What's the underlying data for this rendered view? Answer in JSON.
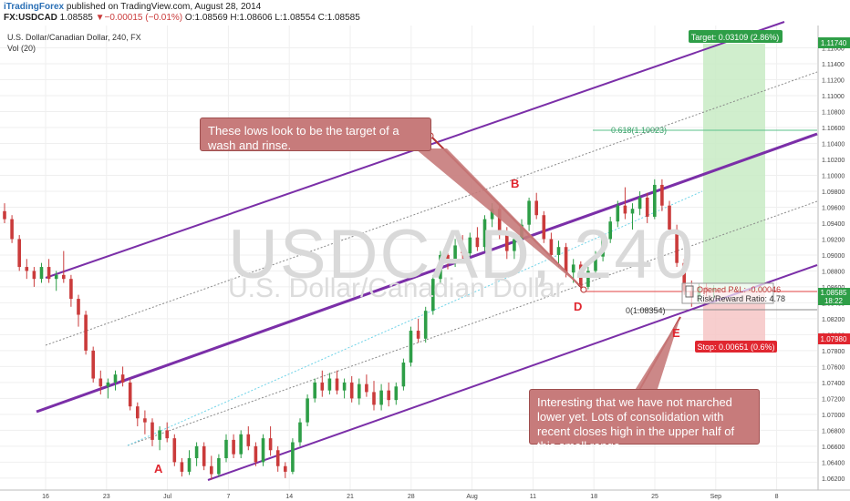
{
  "header": {
    "publisher": "iTradingForex",
    "published_text": "published on TradingView.com, August 28, 2014",
    "symbol": "FX:USDCAD",
    "last": "1.08585",
    "change": "▼−0.00015 (−0.01%)",
    "open_label": "O:",
    "open": "1.08569",
    "high_label": "H:",
    "high": "1.08606",
    "low_label": "L:",
    "low": "1.08554",
    "close_label": "C:",
    "close": "1.08585"
  },
  "instrument_line": "U.S. Dollar/Canadian Dollar, 240, FX",
  "volume_line": "Vol (20)",
  "watermark": {
    "symbol": "USDCAD, 240",
    "name": "U.S. Dollar/Canadian Dollar"
  },
  "annotations": {
    "callout1": "These lows look to be the target of a wash and rinse.",
    "callout2": "Interesting that we have not marched lower yet.  Lots of consolidation with recent closes high in the upper half of this small range.",
    "point_a": "A",
    "point_b": "B",
    "point_d": "D",
    "point_e": "E"
  },
  "position_tool": {
    "target": "Target: 0.03109 (2.86%)",
    "opened_pl": "Opened P&L: -0.00046",
    "risk_reward": "Risk/Reward Ratio: 4.78",
    "stop": "Stop: 0.00651 (0.6%)"
  },
  "fib": {
    "upper": "0.618(1.10023)",
    "lower": "0(1.08354)"
  },
  "price_tags": {
    "target_price": "1.11740",
    "last_price": "1.08585",
    "countdown": "18:22",
    "stop_price": "1.07980"
  },
  "colors": {
    "up": "#2e9e47",
    "down": "#ca3b3b",
    "channel": "#7b2fa8",
    "arrow": "#b33333",
    "target_zone": "#c8ebc4",
    "stop_zone": "#f6c5c5"
  },
  "chart_data": {
    "type": "candlestick",
    "x_ticks": [
      "16",
      "23",
      "Jul",
      "7",
      "14",
      "21",
      "28",
      "Aug",
      "11",
      "18",
      "25",
      "Sep",
      "8"
    ],
    "y_ticks": [
      1.062,
      1.064,
      1.066,
      1.068,
      1.07,
      1.072,
      1.074,
      1.076,
      1.078,
      1.08,
      1.082,
      1.084,
      1.086,
      1.088,
      1.09,
      1.092,
      1.094,
      1.096,
      1.098,
      1.1,
      1.102,
      1.104,
      1.106,
      1.108,
      1.11,
      1.112,
      1.114,
      1.116
    ],
    "ylim": [
      1.0605,
      1.1188
    ],
    "xlim": [
      0,
      218
    ],
    "grid": true,
    "series": [
      {
        "day": 0,
        "open": 1.0955,
        "high": 1.0965,
        "low": 1.094,
        "close": 1.0945
      },
      {
        "day": 2,
        "open": 1.0945,
        "high": 1.095,
        "low": 1.0915,
        "close": 1.092
      },
      {
        "day": 4,
        "open": 1.092,
        "high": 1.0925,
        "low": 1.088,
        "close": 1.0885
      },
      {
        "day": 6,
        "open": 1.0885,
        "high": 1.0895,
        "low": 1.087,
        "close": 1.088
      },
      {
        "day": 8,
        "open": 1.088,
        "high": 1.0885,
        "low": 1.086,
        "close": 1.087
      },
      {
        "day": 10,
        "open": 1.087,
        "high": 1.089,
        "low": 1.0865,
        "close": 1.0885
      },
      {
        "day": 12,
        "open": 1.0885,
        "high": 1.0895,
        "low": 1.0865,
        "close": 1.087
      },
      {
        "day": 14,
        "open": 1.087,
        "high": 1.088,
        "low": 1.0855,
        "close": 1.0875
      },
      {
        "day": 16,
        "open": 1.0875,
        "high": 1.0905,
        "low": 1.0865,
        "close": 1.087
      },
      {
        "day": 18,
        "open": 1.087,
        "high": 1.0875,
        "low": 1.0835,
        "close": 1.0845
      },
      {
        "day": 20,
        "open": 1.0845,
        "high": 1.085,
        "low": 1.081,
        "close": 1.0825
      },
      {
        "day": 22,
        "open": 1.0825,
        "high": 1.083,
        "low": 1.0775,
        "close": 1.078
      },
      {
        "day": 24,
        "open": 1.078,
        "high": 1.0785,
        "low": 1.074,
        "close": 1.0745
      },
      {
        "day": 26,
        "open": 1.0745,
        "high": 1.0755,
        "low": 1.0725,
        "close": 1.0735
      },
      {
        "day": 28,
        "open": 1.0735,
        "high": 1.0745,
        "low": 1.072,
        "close": 1.074
      },
      {
        "day": 30,
        "open": 1.074,
        "high": 1.0755,
        "low": 1.073,
        "close": 1.075
      },
      {
        "day": 32,
        "open": 1.075,
        "high": 1.076,
        "low": 1.0735,
        "close": 1.074
      },
      {
        "day": 34,
        "open": 1.074,
        "high": 1.0745,
        "low": 1.0705,
        "close": 1.071
      },
      {
        "day": 36,
        "open": 1.071,
        "high": 1.0715,
        "low": 1.0685,
        "close": 1.0695
      },
      {
        "day": 38,
        "open": 1.0695,
        "high": 1.0705,
        "low": 1.0675,
        "close": 1.069
      },
      {
        "day": 40,
        "open": 1.069,
        "high": 1.0695,
        "low": 1.066,
        "close": 1.0668
      },
      {
        "day": 42,
        "open": 1.0668,
        "high": 1.0685,
        "low": 1.0655,
        "close": 1.068
      },
      {
        "day": 44,
        "open": 1.068,
        "high": 1.069,
        "low": 1.0665,
        "close": 1.067
      },
      {
        "day": 46,
        "open": 1.067,
        "high": 1.0675,
        "low": 1.0635,
        "close": 1.064
      },
      {
        "day": 48,
        "open": 1.064,
        "high": 1.0645,
        "low": 1.0622,
        "close": 1.0628
      },
      {
        "day": 50,
        "open": 1.0628,
        "high": 1.0655,
        "low": 1.0624,
        "close": 1.0645
      },
      {
        "day": 52,
        "open": 1.0645,
        "high": 1.0665,
        "low": 1.0635,
        "close": 1.066
      },
      {
        "day": 54,
        "open": 1.066,
        "high": 1.0665,
        "low": 1.063,
        "close": 1.0635
      },
      {
        "day": 56,
        "open": 1.0635,
        "high": 1.0648,
        "low": 1.0618,
        "close": 1.0625
      },
      {
        "day": 58,
        "open": 1.0625,
        "high": 1.065,
        "low": 1.0622,
        "close": 1.0645
      },
      {
        "day": 60,
        "open": 1.0645,
        "high": 1.0675,
        "low": 1.064,
        "close": 1.0668
      },
      {
        "day": 62,
        "open": 1.0668,
        "high": 1.0675,
        "low": 1.0645,
        "close": 1.065
      },
      {
        "day": 64,
        "open": 1.065,
        "high": 1.068,
        "low": 1.0645,
        "close": 1.0675
      },
      {
        "day": 66,
        "open": 1.0675,
        "high": 1.0685,
        "low": 1.0655,
        "close": 1.066
      },
      {
        "day": 68,
        "open": 1.066,
        "high": 1.0665,
        "low": 1.0635,
        "close": 1.064
      },
      {
        "day": 70,
        "open": 1.064,
        "high": 1.0675,
        "low": 1.0635,
        "close": 1.067
      },
      {
        "day": 72,
        "open": 1.067,
        "high": 1.0685,
        "low": 1.0648,
        "close": 1.0655
      },
      {
        "day": 74,
        "open": 1.0655,
        "high": 1.066,
        "low": 1.0628,
        "close": 1.0635
      },
      {
        "day": 76,
        "open": 1.0635,
        "high": 1.064,
        "low": 1.062,
        "close": 1.0628
      },
      {
        "day": 78,
        "open": 1.0628,
        "high": 1.067,
        "low": 1.0625,
        "close": 1.0665
      },
      {
        "day": 80,
        "open": 1.0665,
        "high": 1.0695,
        "low": 1.066,
        "close": 1.069
      },
      {
        "day": 82,
        "open": 1.069,
        "high": 1.0725,
        "low": 1.0685,
        "close": 1.072
      },
      {
        "day": 84,
        "open": 1.072,
        "high": 1.0745,
        "low": 1.0715,
        "close": 1.074
      },
      {
        "day": 86,
        "open": 1.074,
        "high": 1.0755,
        "low": 1.0722,
        "close": 1.073
      },
      {
        "day": 88,
        "open": 1.073,
        "high": 1.0752,
        "low": 1.0725,
        "close": 1.0745
      },
      {
        "day": 90,
        "open": 1.0745,
        "high": 1.0755,
        "low": 1.0725,
        "close": 1.073
      },
      {
        "day": 92,
        "open": 1.073,
        "high": 1.0745,
        "low": 1.072,
        "close": 1.074
      },
      {
        "day": 94,
        "open": 1.074,
        "high": 1.0748,
        "low": 1.0715,
        "close": 1.072
      },
      {
        "day": 96,
        "open": 1.072,
        "high": 1.0745,
        "low": 1.0712,
        "close": 1.0738
      },
      {
        "day": 98,
        "open": 1.0738,
        "high": 1.075,
        "low": 1.0722,
        "close": 1.0728
      },
      {
        "day": 100,
        "open": 1.0728,
        "high": 1.0742,
        "low": 1.0705,
        "close": 1.0712
      },
      {
        "day": 102,
        "open": 1.0712,
        "high": 1.0738,
        "low": 1.0705,
        "close": 1.073
      },
      {
        "day": 104,
        "open": 1.073,
        "high": 1.074,
        "low": 1.071,
        "close": 1.0718
      },
      {
        "day": 106,
        "open": 1.0718,
        "high": 1.074,
        "low": 1.0712,
        "close": 1.0735
      },
      {
        "day": 108,
        "open": 1.0735,
        "high": 1.077,
        "low": 1.073,
        "close": 1.0765
      },
      {
        "day": 110,
        "open": 1.0765,
        "high": 1.081,
        "low": 1.076,
        "close": 1.0805
      },
      {
        "day": 112,
        "open": 1.0805,
        "high": 1.082,
        "low": 1.079,
        "close": 1.0795
      },
      {
        "day": 114,
        "open": 1.0795,
        "high": 1.0835,
        "low": 1.079,
        "close": 1.083
      },
      {
        "day": 116,
        "open": 1.083,
        "high": 1.0875,
        "low": 1.0825,
        "close": 1.087
      },
      {
        "day": 118,
        "open": 1.087,
        "high": 1.0905,
        "low": 1.0865,
        "close": 1.09
      },
      {
        "day": 120,
        "open": 1.09,
        "high": 1.0915,
        "low": 1.0882,
        "close": 1.089
      },
      {
        "day": 122,
        "open": 1.089,
        "high": 1.092,
        "low": 1.0885,
        "close": 1.0912
      },
      {
        "day": 124,
        "open": 1.0912,
        "high": 1.0925,
        "low": 1.0895,
        "close": 1.0902
      },
      {
        "day": 126,
        "open": 1.0902,
        "high": 1.0928,
        "low": 1.0898,
        "close": 1.0922
      },
      {
        "day": 128,
        "open": 1.0922,
        "high": 1.0935,
        "low": 1.0905,
        "close": 1.091
      },
      {
        "day": 130,
        "open": 1.091,
        "high": 1.095,
        "low": 1.0905,
        "close": 1.0945
      },
      {
        "day": 132,
        "open": 1.0945,
        "high": 1.0965,
        "low": 1.0935,
        "close": 1.0958
      },
      {
        "day": 134,
        "open": 1.0958,
        "high": 1.0962,
        "low": 1.092,
        "close": 1.0925
      },
      {
        "day": 136,
        "open": 1.0925,
        "high": 1.0935,
        "low": 1.0895,
        "close": 1.0905
      },
      {
        "day": 138,
        "open": 1.0905,
        "high": 1.0925,
        "low": 1.0895,
        "close": 1.092
      },
      {
        "day": 140,
        "open": 1.092,
        "high": 1.0945,
        "low": 1.091,
        "close": 1.0938
      },
      {
        "day": 142,
        "open": 1.0938,
        "high": 1.0972,
        "low": 1.093,
        "close": 1.0968
      },
      {
        "day": 144,
        "open": 1.0968,
        "high": 1.0978,
        "low": 1.0945,
        "close": 1.095
      },
      {
        "day": 146,
        "open": 1.095,
        "high": 1.0955,
        "low": 1.0915,
        "close": 1.092
      },
      {
        "day": 148,
        "open": 1.092,
        "high": 1.0928,
        "low": 1.0895,
        "close": 1.09
      },
      {
        "day": 150,
        "open": 1.09,
        "high": 1.0918,
        "low": 1.0885,
        "close": 1.091
      },
      {
        "day": 152,
        "open": 1.091,
        "high": 1.0915,
        "low": 1.0872,
        "close": 1.0878
      },
      {
        "day": 154,
        "open": 1.0878,
        "high": 1.0895,
        "low": 1.0865,
        "close": 1.0888
      },
      {
        "day": 156,
        "open": 1.0888,
        "high": 1.0892,
        "low": 1.0855,
        "close": 1.086
      },
      {
        "day": 158,
        "open": 1.086,
        "high": 1.0885,
        "low": 1.0857,
        "close": 1.088
      },
      {
        "day": 160,
        "open": 1.088,
        "high": 1.0905,
        "low": 1.0872,
        "close": 1.0898
      },
      {
        "day": 162,
        "open": 1.0898,
        "high": 1.0925,
        "low": 1.0892,
        "close": 1.092
      },
      {
        "day": 164,
        "open": 1.092,
        "high": 1.0948,
        "low": 1.0915,
        "close": 1.0942
      },
      {
        "day": 166,
        "open": 1.0942,
        "high": 1.0968,
        "low": 1.0935,
        "close": 1.0962
      },
      {
        "day": 168,
        "open": 1.0962,
        "high": 1.0985,
        "low": 1.0945,
        "close": 1.0952
      },
      {
        "day": 170,
        "open": 1.0952,
        "high": 1.0965,
        "low": 1.0932,
        "close": 1.0958
      },
      {
        "day": 172,
        "open": 1.0958,
        "high": 1.098,
        "low": 1.095,
        "close": 1.0972
      },
      {
        "day": 174,
        "open": 1.0972,
        "high": 1.0978,
        "low": 1.094,
        "close": 1.0948
      },
      {
        "day": 176,
        "open": 1.0948,
        "high": 1.0995,
        "low": 1.0945,
        "close": 1.0988
      },
      {
        "day": 178,
        "open": 1.0988,
        "high": 1.0995,
        "low": 1.0955,
        "close": 1.0962
      },
      {
        "day": 180,
        "open": 1.0962,
        "high": 1.0968,
        "low": 1.0925,
        "close": 1.0932
      },
      {
        "day": 182,
        "open": 1.0932,
        "high": 1.0938,
        "low": 1.0885,
        "close": 1.089
      },
      {
        "day": 184,
        "open": 1.089,
        "high": 1.0895,
        "low": 1.085,
        "close": 1.0855
      },
      {
        "day": 186,
        "open": 1.0855,
        "high": 1.0868,
        "low": 1.0835,
        "close": 1.0848
      },
      {
        "day": 188,
        "open": 1.0848,
        "high": 1.0865,
        "low": 1.084,
        "close": 1.086
      },
      {
        "day": 190,
        "open": 1.086,
        "high": 1.0864,
        "low": 1.0848,
        "close": 1.0855
      },
      {
        "day": 192,
        "open": 1.0855,
        "high": 1.0862,
        "low": 1.0846,
        "close": 1.0858
      }
    ]
  }
}
